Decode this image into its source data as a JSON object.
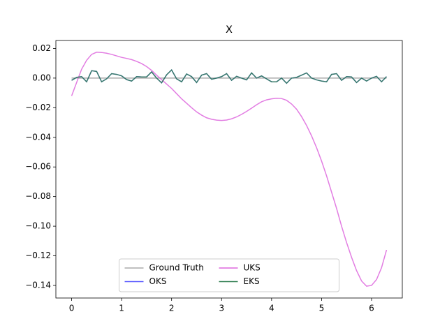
{
  "chart_data": {
    "type": "line",
    "title": "X",
    "x": [
      0,
      0.1,
      0.2,
      0.3,
      0.4,
      0.5,
      0.6,
      0.7,
      0.8,
      0.9,
      1.0,
      1.1,
      1.2,
      1.3,
      1.4,
      1.5,
      1.6,
      1.7,
      1.8,
      1.9,
      2.0,
      2.1,
      2.2,
      2.3,
      2.4,
      2.5,
      2.6,
      2.7,
      2.8,
      2.9,
      3.0,
      3.1,
      3.2,
      3.3,
      3.4,
      3.5,
      3.6,
      3.7,
      3.8,
      3.9,
      4.0,
      4.1,
      4.2,
      4.3,
      4.4,
      4.5,
      4.6,
      4.7,
      4.8,
      4.9,
      5.0,
      5.1,
      5.2,
      5.3,
      5.4,
      5.5,
      5.6,
      5.7,
      5.8,
      5.9,
      6.0,
      6.1,
      6.2,
      6.3
    ],
    "series": [
      {
        "name": "Ground Truth",
        "color": "#aaaaaa",
        "values": [
          0,
          0,
          0,
          0,
          0,
          0,
          0,
          0,
          0,
          0,
          0,
          0,
          0,
          0,
          0,
          0,
          0,
          0,
          0,
          0,
          0,
          0,
          0,
          0,
          0,
          0,
          0,
          0,
          0,
          0,
          0,
          0,
          0,
          0,
          0,
          0,
          0,
          0,
          0,
          0,
          0,
          0,
          0,
          0,
          0,
          0,
          0,
          0,
          0,
          0,
          0,
          0,
          0,
          0,
          0,
          0,
          0,
          0,
          0,
          0,
          0,
          0,
          0,
          0
        ]
      },
      {
        "name": "OKS",
        "color": "#5555ff",
        "values": [
          -0.0015,
          0.0005,
          0.001,
          -0.0025,
          0.005,
          0.0045,
          -0.0025,
          -0.0005,
          0.003,
          0.0025,
          0.0015,
          -0.001,
          -0.002,
          0.001,
          0.0008,
          0.0008,
          0.0042,
          0.0,
          -0.0032,
          0.0022,
          0.0055,
          -0.0005,
          -0.0025,
          0.0028,
          0.001,
          -0.003,
          0.002,
          0.003,
          -0.0008,
          0.0,
          0.001,
          0.003,
          -0.0015,
          0.0012,
          0.0,
          -0.0012,
          0.0035,
          0.0,
          0.0015,
          -0.0005,
          -0.0025,
          -0.0025,
          0.0,
          -0.0035,
          0.0,
          0.0005,
          0.002,
          0.0035,
          0.0,
          -0.0012,
          -0.002,
          -0.0025,
          0.0025,
          0.003,
          -0.0015,
          0.001,
          0.0008,
          -0.003,
          0.0,
          -0.002,
          0.0,
          0.0012,
          -0.0025,
          0.001
        ]
      },
      {
        "name": "UKS",
        "color": "#dd66dd",
        "values": [
          -0.012,
          -0.003,
          0.006,
          0.012,
          0.016,
          0.0175,
          0.0173,
          0.0168,
          0.016,
          0.015,
          0.014,
          0.0133,
          0.0125,
          0.0113,
          0.0098,
          0.0078,
          0.0052,
          0.002,
          -0.001,
          -0.004,
          -0.007,
          -0.0105,
          -0.014,
          -0.017,
          -0.02,
          -0.0228,
          -0.025,
          -0.0268,
          -0.0278,
          -0.0284,
          -0.0286,
          -0.0283,
          -0.0275,
          -0.0262,
          -0.0245,
          -0.0225,
          -0.0203,
          -0.018,
          -0.016,
          -0.0147,
          -0.014,
          -0.0136,
          -0.0138,
          -0.015,
          -0.0175,
          -0.021,
          -0.026,
          -0.032,
          -0.039,
          -0.047,
          -0.056,
          -0.066,
          -0.077,
          -0.088,
          -0.1,
          -0.111,
          -0.121,
          -0.13,
          -0.137,
          -0.1405,
          -0.14,
          -0.136,
          -0.128,
          -0.116
        ]
      },
      {
        "name": "EKS",
        "color": "#2e7d4f",
        "values": [
          -0.0015,
          0.0005,
          0.001,
          -0.0025,
          0.005,
          0.0045,
          -0.0025,
          -0.0005,
          0.003,
          0.0025,
          0.0015,
          -0.001,
          -0.002,
          0.001,
          0.0008,
          0.0008,
          0.0042,
          0.0,
          -0.0032,
          0.0022,
          0.0055,
          -0.0005,
          -0.0025,
          0.0028,
          0.001,
          -0.003,
          0.002,
          0.003,
          -0.0008,
          0.0,
          0.001,
          0.003,
          -0.0015,
          0.0012,
          0.0,
          -0.0012,
          0.0035,
          0.0,
          0.0015,
          -0.0005,
          -0.0025,
          -0.0025,
          0.0,
          -0.0035,
          0.0,
          0.0005,
          0.002,
          0.0035,
          0.0,
          -0.0012,
          -0.002,
          -0.0025,
          0.0025,
          0.003,
          -0.0015,
          0.001,
          0.0008,
          -0.003,
          0.0,
          -0.002,
          0.0,
          0.0012,
          -0.0025,
          0.001
        ]
      }
    ],
    "xlim": [
      -0.315,
      6.615
    ],
    "ylim": [
      -0.1485,
      0.0254
    ],
    "xticks": [
      0,
      1,
      2,
      3,
      4,
      5,
      6
    ],
    "yticks": [
      {
        "value": -0.14,
        "label": "−0.14"
      },
      {
        "value": -0.12,
        "label": "−0.12"
      },
      {
        "value": -0.1,
        "label": "−0.10"
      },
      {
        "value": -0.08,
        "label": "−0.08"
      },
      {
        "value": -0.06,
        "label": "−0.06"
      },
      {
        "value": -0.04,
        "label": "−0.04"
      },
      {
        "value": -0.02,
        "label": "−0.02"
      },
      {
        "value": 0,
        "label": "0.00"
      },
      {
        "value": 0.02,
        "label": "0.02"
      }
    ],
    "legend": "lower center",
    "legend_columns": 3
  }
}
